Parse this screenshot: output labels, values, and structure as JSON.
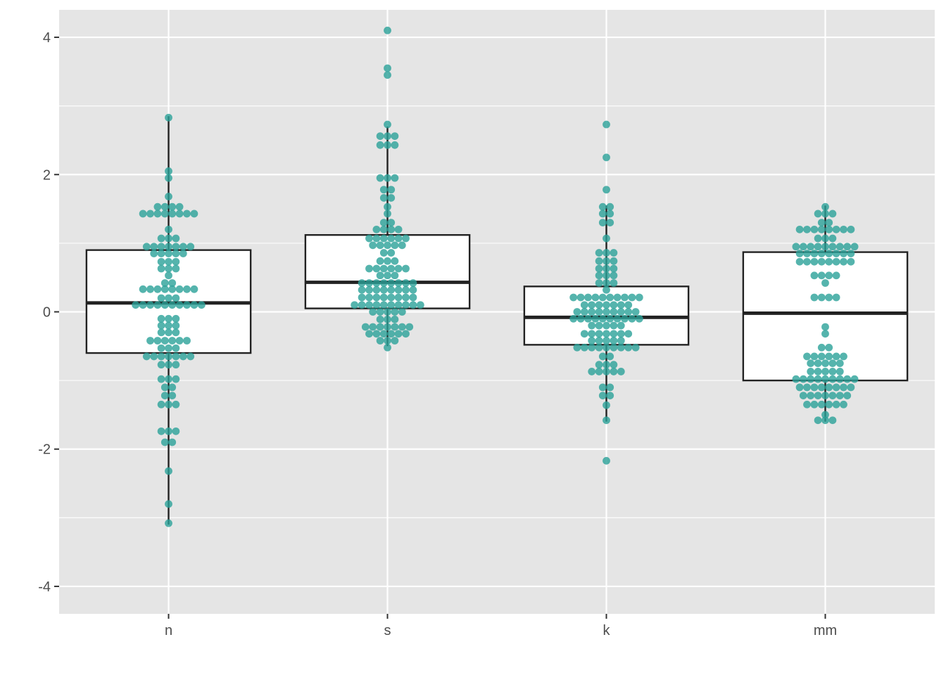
{
  "chart_data": {
    "type": "box",
    "overlay": "dotplot",
    "categories": [
      "n",
      "s",
      "k",
      "mm"
    ],
    "ylim": [
      -4.4,
      4.4
    ],
    "y_ticks": [
      -4,
      -2,
      0,
      2,
      4
    ],
    "y_tick_labels": [
      "-4",
      "-2",
      "0",
      "2",
      "4"
    ],
    "grid": true,
    "legend": "none",
    "title": "",
    "xlabel": "",
    "ylabel": "",
    "boxes": [
      {
        "category": "n",
        "whisker_low": -3.1,
        "q1": -0.6,
        "median": 0.13,
        "q3": 0.9,
        "whisker_high": 2.85
      },
      {
        "category": "s",
        "whisker_low": -0.5,
        "q1": 0.05,
        "median": 0.43,
        "q3": 1.12,
        "whisker_high": 2.7
      },
      {
        "category": "k",
        "whisker_low": -1.6,
        "q1": -0.48,
        "median": -0.08,
        "q3": 0.37,
        "whisker_high": 1.55
      },
      {
        "category": "mm",
        "whisker_low": -1.6,
        "q1": -1.0,
        "median": -0.02,
        "q3": 0.87,
        "whisker_high": 1.55
      }
    ],
    "dots": [
      {
        "category": "n",
        "rows": [
          {
            "y": 2.83,
            "count": 1
          },
          {
            "y": 2.05,
            "count": 1
          },
          {
            "y": 1.95,
            "count": 1
          },
          {
            "y": 1.68,
            "count": 1
          },
          {
            "y": 1.53,
            "count": 4
          },
          {
            "y": 1.43,
            "count": 8
          },
          {
            "y": 1.2,
            "count": 1
          },
          {
            "y": 1.07,
            "count": 3
          },
          {
            "y": 0.95,
            "count": 7
          },
          {
            "y": 0.85,
            "count": 5
          },
          {
            "y": 0.73,
            "count": 3
          },
          {
            "y": 0.63,
            "count": 3
          },
          {
            "y": 0.53,
            "count": 1
          },
          {
            "y": 0.42,
            "count": 2
          },
          {
            "y": 0.33,
            "count": 8
          },
          {
            "y": 0.2,
            "count": 3
          },
          {
            "y": 0.1,
            "count": 10
          },
          {
            "y": -0.1,
            "count": 3
          },
          {
            "y": -0.2,
            "count": 3
          },
          {
            "y": -0.3,
            "count": 3
          },
          {
            "y": -0.42,
            "count": 6
          },
          {
            "y": -0.53,
            "count": 3
          },
          {
            "y": -0.65,
            "count": 7
          },
          {
            "y": -0.77,
            "count": 3
          },
          {
            "y": -0.98,
            "count": 3
          },
          {
            "y": -1.1,
            "count": 2
          },
          {
            "y": -1.22,
            "count": 2
          },
          {
            "y": -1.35,
            "count": 3
          },
          {
            "y": -1.74,
            "count": 3
          },
          {
            "y": -1.9,
            "count": 2
          },
          {
            "y": -2.32,
            "count": 1
          },
          {
            "y": -2.8,
            "count": 1
          },
          {
            "y": -3.08,
            "count": 1
          }
        ]
      },
      {
        "category": "s",
        "rows": [
          {
            "y": 4.1,
            "count": 1
          },
          {
            "y": 3.55,
            "count": 1
          },
          {
            "y": 3.45,
            "count": 1
          },
          {
            "y": 2.73,
            "count": 1
          },
          {
            "y": 2.56,
            "count": 3
          },
          {
            "y": 2.43,
            "count": 3
          },
          {
            "y": 1.95,
            "count": 3
          },
          {
            "y": 1.78,
            "count": 2
          },
          {
            "y": 1.66,
            "count": 2
          },
          {
            "y": 1.53,
            "count": 1
          },
          {
            "y": 1.43,
            "count": 1
          },
          {
            "y": 1.3,
            "count": 2
          },
          {
            "y": 1.2,
            "count": 4
          },
          {
            "y": 1.07,
            "count": 6
          },
          {
            "y": 0.97,
            "count": 5
          },
          {
            "y": 0.86,
            "count": 2
          },
          {
            "y": 0.74,
            "count": 3
          },
          {
            "y": 0.63,
            "count": 6
          },
          {
            "y": 0.53,
            "count": 3
          },
          {
            "y": 0.42,
            "count": 8
          },
          {
            "y": 0.32,
            "count": 8
          },
          {
            "y": 0.21,
            "count": 8
          },
          {
            "y": 0.1,
            "count": 10
          },
          {
            "y": 0.0,
            "count": 5
          },
          {
            "y": -0.11,
            "count": 3
          },
          {
            "y": -0.22,
            "count": 7
          },
          {
            "y": -0.32,
            "count": 6
          },
          {
            "y": -0.42,
            "count": 3
          },
          {
            "y": -0.52,
            "count": 1
          }
        ]
      },
      {
        "category": "k",
        "rows": [
          {
            "y": 2.73,
            "count": 1
          },
          {
            "y": 2.25,
            "count": 1
          },
          {
            "y": 1.78,
            "count": 1
          },
          {
            "y": 1.53,
            "count": 2
          },
          {
            "y": 1.43,
            "count": 2
          },
          {
            "y": 1.3,
            "count": 2
          },
          {
            "y": 1.07,
            "count": 1
          },
          {
            "y": 0.86,
            "count": 3
          },
          {
            "y": 0.74,
            "count": 3
          },
          {
            "y": 0.63,
            "count": 3
          },
          {
            "y": 0.53,
            "count": 3
          },
          {
            "y": 0.42,
            "count": 3
          },
          {
            "y": 0.32,
            "count": 1
          },
          {
            "y": 0.21,
            "count": 10
          },
          {
            "y": 0.1,
            "count": 7
          },
          {
            "y": 0.0,
            "count": 9
          },
          {
            "y": -0.1,
            "count": 10
          },
          {
            "y": -0.2,
            "count": 5
          },
          {
            "y": -0.32,
            "count": 7
          },
          {
            "y": -0.42,
            "count": 5
          },
          {
            "y": -0.52,
            "count": 9
          },
          {
            "y": -0.65,
            "count": 2
          },
          {
            "y": -0.77,
            "count": 3
          },
          {
            "y": -0.87,
            "count": 5
          },
          {
            "y": -1.1,
            "count": 2
          },
          {
            "y": -1.22,
            "count": 2
          },
          {
            "y": -1.36,
            "count": 1
          },
          {
            "y": -1.58,
            "count": 1
          },
          {
            "y": -2.17,
            "count": 1
          }
        ]
      },
      {
        "category": "mm",
        "rows": [
          {
            "y": 1.53,
            "count": 1
          },
          {
            "y": 1.43,
            "count": 3
          },
          {
            "y": 1.3,
            "count": 2
          },
          {
            "y": 1.2,
            "count": 8
          },
          {
            "y": 1.07,
            "count": 3
          },
          {
            "y": 0.95,
            "count": 9
          },
          {
            "y": 0.85,
            "count": 8
          },
          {
            "y": 0.73,
            "count": 8
          },
          {
            "y": 0.53,
            "count": 4
          },
          {
            "y": 0.42,
            "count": 1
          },
          {
            "y": 0.21,
            "count": 4
          },
          {
            "y": -0.22,
            "count": 1
          },
          {
            "y": -0.32,
            "count": 1
          },
          {
            "y": -0.52,
            "count": 2
          },
          {
            "y": -0.65,
            "count": 6
          },
          {
            "y": -0.75,
            "count": 5
          },
          {
            "y": -0.87,
            "count": 5
          },
          {
            "y": -0.98,
            "count": 9
          },
          {
            "y": -1.1,
            "count": 8
          },
          {
            "y": -1.22,
            "count": 7
          },
          {
            "y": -1.35,
            "count": 6
          },
          {
            "y": -1.5,
            "count": 1
          },
          {
            "y": -1.58,
            "count": 3
          }
        ]
      }
    ],
    "colors": {
      "panel_background": "#e5e5e5",
      "grid": "#ffffff",
      "box_fill": "#ffffff",
      "box_stroke": "#222222",
      "dot_fill": "#2aa198",
      "tick_text": "#4d4d4d"
    }
  }
}
